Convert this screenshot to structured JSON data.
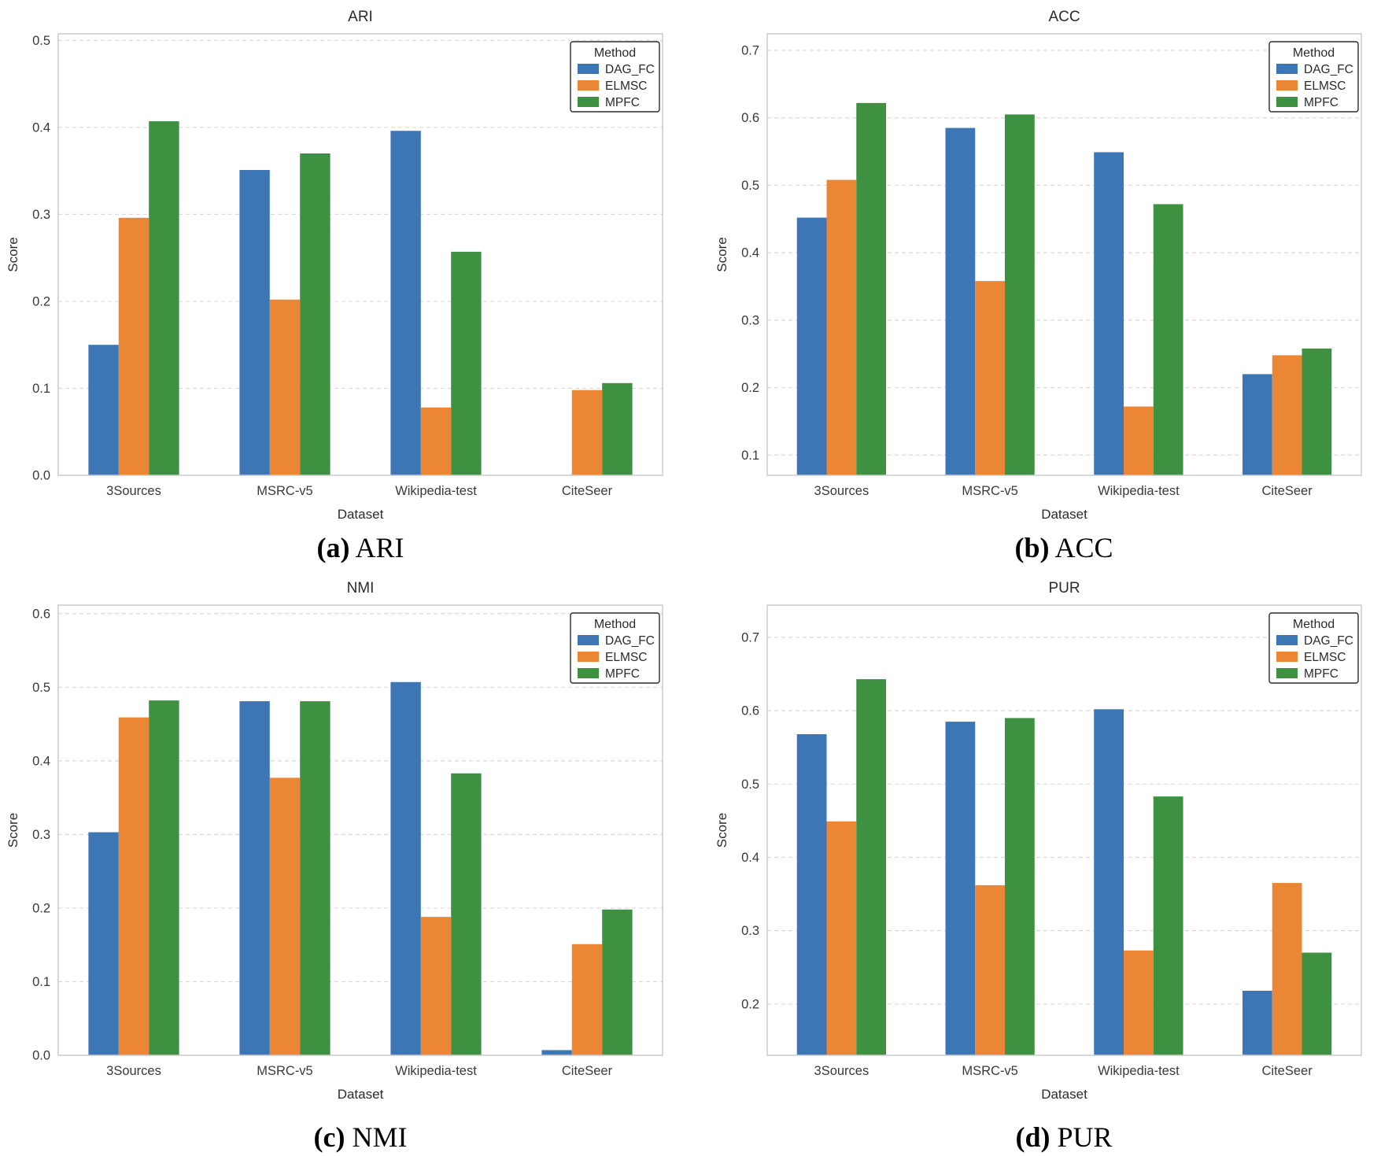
{
  "figure": {
    "background": "#ffffff",
    "plot_border_color": "#cccccc",
    "gridline_color": "#d9d9d9",
    "legend_title": "Method",
    "series_colors": {
      "DAG_FC": "#3d76b4",
      "ELMSC": "#ea8634",
      "MPFC": "#3f9142"
    }
  },
  "captions": {
    "a": {
      "prefix": "(a)",
      "label": "ARI"
    },
    "b": {
      "prefix": "(b)",
      "label": "ACC"
    },
    "c": {
      "prefix": "(c)",
      "label": "NMI"
    },
    "d": {
      "prefix": "(d)",
      "label": "PUR"
    }
  },
  "chart_data": [
    {
      "id": "ari",
      "type": "bar",
      "title": "ARI",
      "xlabel": "Dataset",
      "ylabel": "Score",
      "legend_title": "Method",
      "legend_position": "upper right",
      "grid": true,
      "categories": [
        "3Sources",
        "MSRC-v5",
        "Wikipedia-test",
        "CiteSeer"
      ],
      "series": [
        {
          "name": "DAG_FC",
          "values": [
            0.15,
            0.351,
            0.396,
            0.0
          ]
        },
        {
          "name": "ELMSC",
          "values": [
            0.296,
            0.202,
            0.078,
            0.098
          ]
        },
        {
          "name": "MPFC",
          "values": [
            0.407,
            0.37,
            0.257,
            0.106
          ]
        }
      ],
      "ylim": [
        0.0,
        0.5075
      ],
      "yticks": [
        0.0,
        0.1,
        0.2,
        0.3,
        0.4,
        0.5
      ]
    },
    {
      "id": "acc",
      "type": "bar",
      "title": "ACC",
      "xlabel": "Dataset",
      "ylabel": "Score",
      "legend_title": "Method",
      "legend_position": "upper right",
      "grid": true,
      "categories": [
        "3Sources",
        "MSRC-v5",
        "Wikipedia-test",
        "CiteSeer"
      ],
      "series": [
        {
          "name": "DAG_FC",
          "values": [
            0.452,
            0.585,
            0.549,
            0.22
          ]
        },
        {
          "name": "ELMSC",
          "values": [
            0.508,
            0.358,
            0.172,
            0.248
          ]
        },
        {
          "name": "MPFC",
          "values": [
            0.622,
            0.605,
            0.472,
            0.258
          ]
        }
      ],
      "ylim": [
        0.07,
        0.7245
      ],
      "yticks": [
        0.1,
        0.2,
        0.3,
        0.4,
        0.5,
        0.6,
        0.7
      ]
    },
    {
      "id": "nmi",
      "type": "bar",
      "title": "NMI",
      "xlabel": "Dataset",
      "ylabel": "Score",
      "legend_title": "Method",
      "legend_position": "upper right",
      "grid": true,
      "categories": [
        "3Sources",
        "MSRC-v5",
        "Wikipedia-test",
        "CiteSeer"
      ],
      "series": [
        {
          "name": "DAG_FC",
          "values": [
            0.303,
            0.481,
            0.507,
            0.007
          ]
        },
        {
          "name": "ELMSC",
          "values": [
            0.459,
            0.377,
            0.188,
            0.151
          ]
        },
        {
          "name": "MPFC",
          "values": [
            0.482,
            0.481,
            0.383,
            0.198
          ]
        }
      ],
      "ylim": [
        0.0,
        0.6115
      ],
      "yticks": [
        0.0,
        0.1,
        0.2,
        0.3,
        0.4,
        0.5,
        0.6
      ]
    },
    {
      "id": "pur",
      "type": "bar",
      "title": "PUR",
      "xlabel": "Dataset",
      "ylabel": "Score",
      "legend_title": "Method",
      "legend_position": "upper right",
      "grid": true,
      "categories": [
        "3Sources",
        "MSRC-v5",
        "Wikipedia-test",
        "CiteSeer"
      ],
      "series": [
        {
          "name": "DAG_FC",
          "values": [
            0.568,
            0.585,
            0.602,
            0.218
          ]
        },
        {
          "name": "ELMSC",
          "values": [
            0.449,
            0.362,
            0.273,
            0.365
          ]
        },
        {
          "name": "MPFC",
          "values": [
            0.643,
            0.59,
            0.483,
            0.27
          ]
        }
      ],
      "ylim": [
        0.13,
        0.744
      ],
      "yticks": [
        0.2,
        0.3,
        0.4,
        0.5,
        0.6,
        0.7
      ]
    }
  ]
}
